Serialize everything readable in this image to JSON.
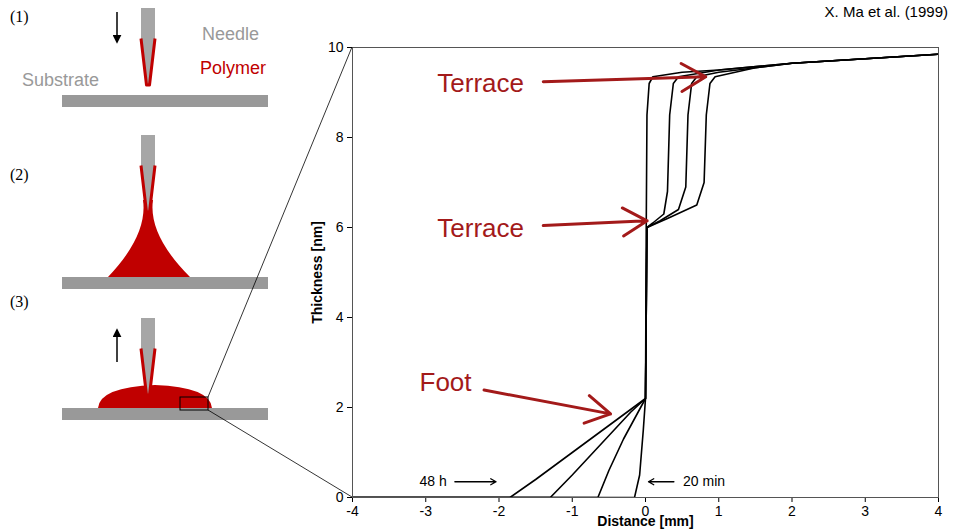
{
  "credit": "X. Ma et al. (1999)",
  "diagram": {
    "steps": [
      "(1)",
      "(2)",
      "(3)"
    ],
    "needle": "Needle",
    "polymer": "Polymer",
    "substrate": "Substrate"
  },
  "chart_data": {
    "type": "line",
    "x_label": "Distance [mm]",
    "y_label": "Thickness [nm]",
    "xlim": [
      -4,
      4
    ],
    "ylim": [
      0,
      10
    ],
    "xticks": [
      -4,
      -3,
      -2,
      -1,
      0,
      1,
      2,
      3,
      4
    ],
    "yticks": [
      0,
      2,
      4,
      6,
      8,
      10
    ],
    "grid": false,
    "color": "#000000",
    "series": [
      {
        "x": [
          -4,
          -0.15,
          -0.08,
          -0.03,
          0,
          0.01,
          0.02,
          0.05,
          0.1,
          0.5,
          1,
          2,
          3,
          4
        ],
        "values": [
          0,
          0,
          0.5,
          1.5,
          2.2,
          6,
          8.5,
          9.2,
          9.35,
          9.45,
          9.5,
          9.65,
          9.75,
          9.85
        ]
      },
      {
        "x": [
          -4,
          -0.65,
          -0.5,
          -0.3,
          -0.1,
          0,
          0.02,
          0.1,
          0.25,
          0.3,
          0.33,
          0.38,
          0.45,
          1,
          2,
          3,
          4
        ],
        "values": [
          0,
          0,
          0.6,
          1.3,
          1.9,
          2.2,
          6,
          6.1,
          6.3,
          6.8,
          8.5,
          9.2,
          9.35,
          9.5,
          9.65,
          9.75,
          9.85
        ]
      },
      {
        "x": [
          -4,
          -1.3,
          -1,
          -0.6,
          -0.2,
          0,
          0.02,
          0.2,
          0.45,
          0.55,
          0.58,
          0.63,
          0.7,
          1,
          2,
          3,
          4
        ],
        "values": [
          0,
          0,
          0.5,
          1.2,
          1.9,
          2.2,
          6,
          6.15,
          6.4,
          6.9,
          8.5,
          9.2,
          9.35,
          9.45,
          9.65,
          9.75,
          9.85
        ]
      },
      {
        "x": [
          -4,
          -1.85,
          -1.5,
          -1,
          -0.5,
          0,
          0.02,
          0.3,
          0.7,
          0.8,
          0.83,
          0.88,
          0.95,
          1.5,
          2,
          3,
          4
        ],
        "values": [
          0,
          0,
          0.4,
          1,
          1.6,
          2.2,
          6,
          6.2,
          6.5,
          7,
          8.5,
          9.2,
          9.35,
          9.55,
          9.65,
          9.75,
          9.85
        ]
      }
    ],
    "callouts": [
      {
        "text": "Terrace",
        "x": -2.25,
        "y": 9.2,
        "target": [
          0.85,
          9.35
        ],
        "color": "#a31a1a"
      },
      {
        "text": "Terrace",
        "x": -2.25,
        "y": 5.98,
        "target": [
          0.05,
          6.15
        ],
        "color": "#a31a1a"
      },
      {
        "text": "Foot",
        "x": -2.73,
        "y": 2.55,
        "target": [
          -0.45,
          1.85
        ],
        "color": "#a31a1a"
      }
    ],
    "time_labels": [
      {
        "text": "48 h",
        "x": -2.9,
        "y": 0.35,
        "target": [
          -2.0,
          0.35
        ],
        "color": "#000000"
      },
      {
        "text": "20 min",
        "x": 0.8,
        "y": 0.35,
        "target": [
          0.0,
          0.35
        ],
        "color": "#000000"
      }
    ]
  }
}
